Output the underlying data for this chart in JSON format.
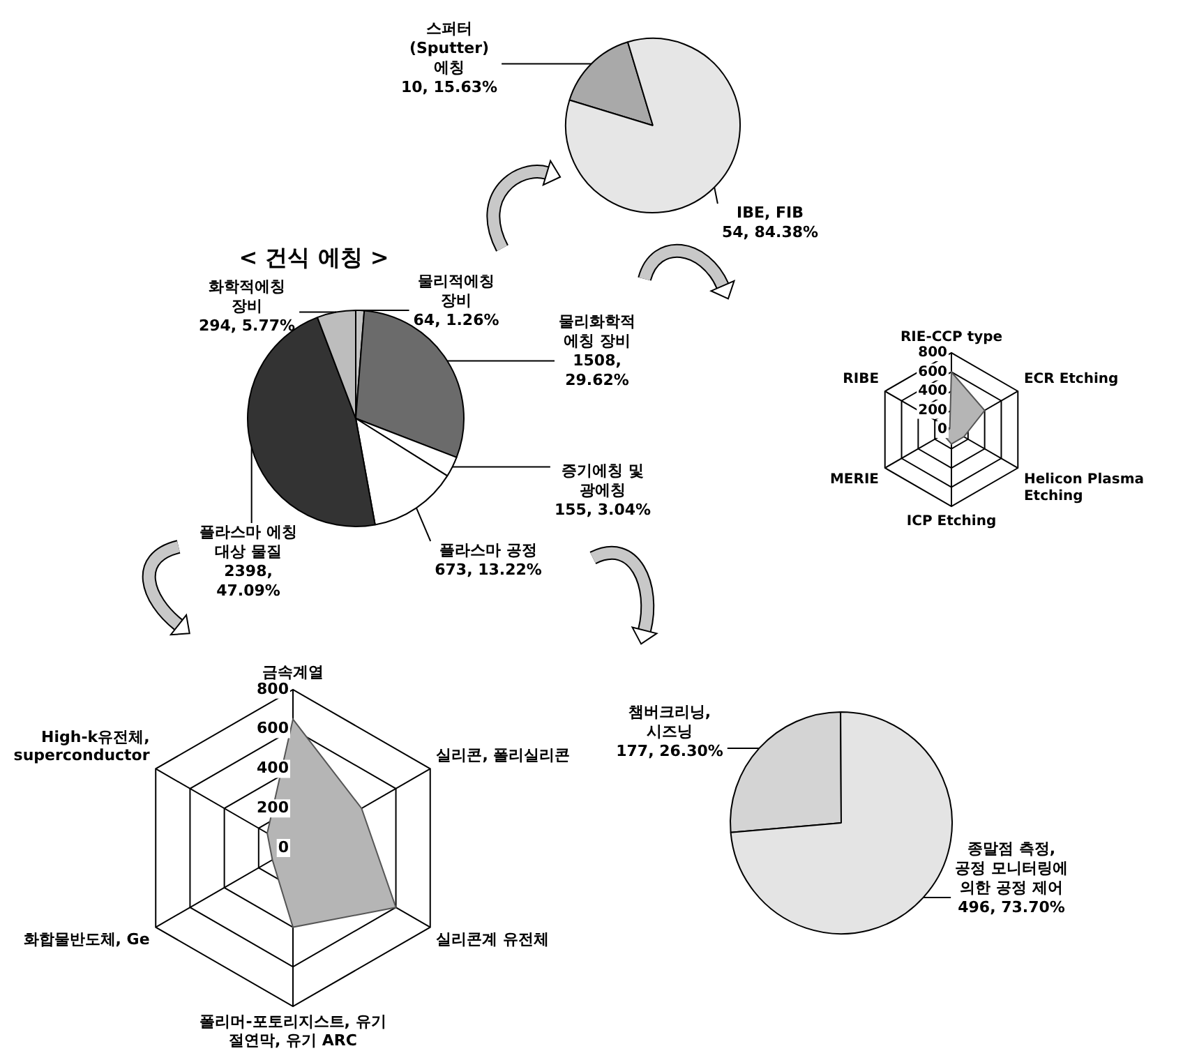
{
  "chart_data": [
    {
      "type": "pie",
      "categories": [
        "스퍼터 (Sputter) 에칭",
        "IBE, FIB"
      ],
      "values": [
        10,
        54
      ],
      "colors": [
        "#a9a9a9",
        "#e6e6e6"
      ],
      "value_labels": [
        "10, 15.63%",
        "54, 84.38%"
      ]
    },
    {
      "type": "pie",
      "title": "< 건식 에칭 >",
      "categories": [
        "물리적에칭 장비",
        "물리화학적 에칭 장비",
        "증기에칭 및 광에칭",
        "플라스마 공정",
        "플라스마 에칭 대상 물질",
        "화학적에칭 장비"
      ],
      "values": [
        64,
        1508,
        155,
        673,
        2398,
        294
      ],
      "colors": [
        "#c4c4c4",
        "#6b6b6b",
        "#ffffff",
        "#ffffff",
        "#333333",
        "#bdbdbd"
      ],
      "value_labels": [
        "64, 1.26%",
        "1508, 29.62%",
        "155, 3.04%",
        "673, 13.22%",
        "2398, 47.09%",
        "294, 5.77%"
      ]
    },
    {
      "type": "radar",
      "categories": [
        "RIE-CCP type",
        "ECR Etching",
        "Helicon Plasma Etching",
        "ICP Etching",
        "MERIE",
        "RIBE"
      ],
      "series": [
        {
          "color": "#b5b5b5",
          "values": [
            600,
            400,
            150,
            150,
            100,
            20
          ]
        }
      ],
      "ylim": [
        0,
        800
      ],
      "yticks": [
        0,
        200,
        400,
        600,
        800
      ],
      "grid": true
    },
    {
      "type": "radar",
      "categories": [
        "금속계열",
        "실리콘, 폴리실리콘",
        "실리콘계 유전체",
        "폴리머-포토리지스트, 유기 절연막, 유기 ARC",
        "화합물반도체, Ge",
        "High-k유전체, superconductor"
      ],
      "series": [
        {
          "color": "#b5b5b5",
          "values": [
            650,
            400,
            600,
            400,
            120,
            150
          ]
        }
      ],
      "ylim": [
        0,
        800
      ],
      "yticks": [
        0,
        200,
        400,
        600,
        800
      ],
      "grid": true
    },
    {
      "type": "pie",
      "categories": [
        "챔버크리닝, 시즈닝",
        "종말점 측정, 공정 모니터링에 의한 공정 제어"
      ],
      "values": [
        177,
        496
      ],
      "colors": [
        "#d4d4d4",
        "#e4e4e4"
      ],
      "value_labels": [
        "177, 26.30%",
        "496, 73.70%"
      ]
    }
  ]
}
